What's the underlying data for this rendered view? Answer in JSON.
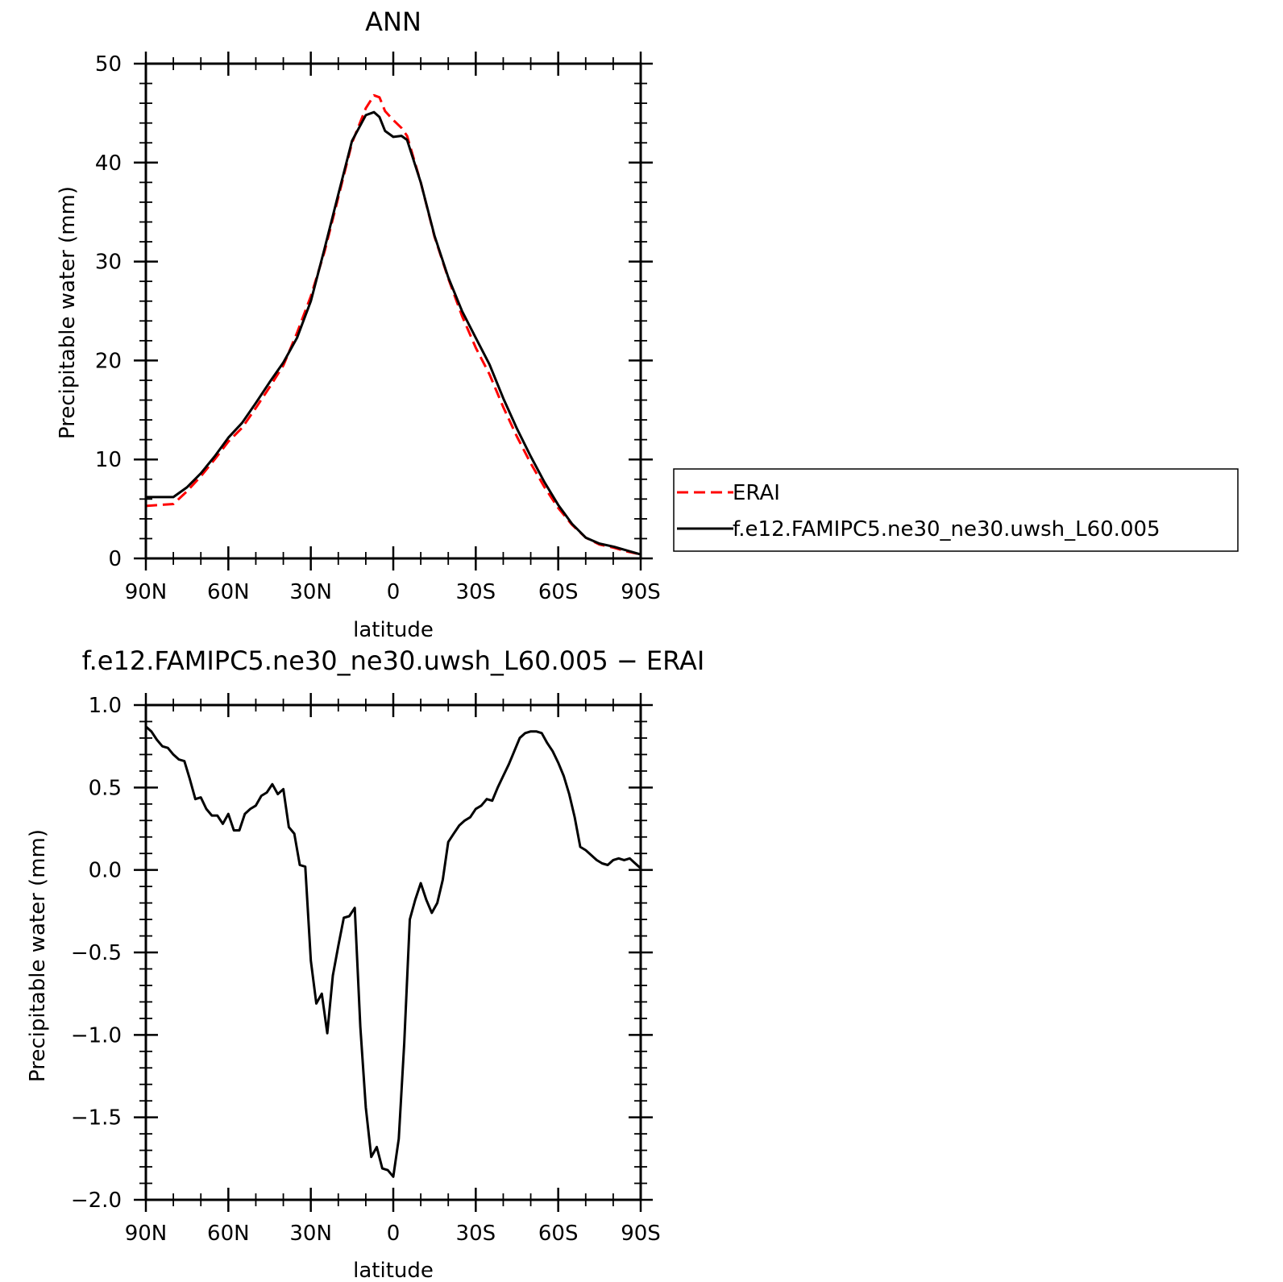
{
  "chart_data": [
    {
      "type": "line",
      "title": "ANN",
      "xlabel": "latitude",
      "ylabel": "Precipitable water (mm)",
      "ylim": [
        0,
        50
      ],
      "xlim": [
        90,
        -90
      ],
      "yticks": [
        0,
        10,
        20,
        30,
        40,
        50
      ],
      "ytick_labels": [
        "0",
        "10",
        "20",
        "30",
        "40",
        "50"
      ],
      "xticks": [
        90,
        60,
        30,
        0,
        -30,
        -60,
        -90
      ],
      "xtick_labels": [
        "90N",
        "60N",
        "30N",
        "0",
        "30S",
        "60S",
        "90S"
      ],
      "grid": false,
      "legend_position": "right",
      "x": [
        90,
        85,
        80,
        75,
        70,
        65,
        60,
        55,
        50,
        45,
        40,
        35,
        30,
        25,
        20,
        15,
        10,
        7,
        5,
        3,
        0,
        -3,
        -5,
        -10,
        -15,
        -20,
        -25,
        -30,
        -35,
        -40,
        -45,
        -50,
        -55,
        -60,
        -65,
        -70,
        -75,
        -80,
        -85,
        -90
      ],
      "series": [
        {
          "name": "ERAI",
          "color": "#ff0000",
          "dash": "dashed",
          "values": [
            5.3,
            5.4,
            5.5,
            6.8,
            8.3,
            10.0,
            11.8,
            13.2,
            15.2,
            17.3,
            19.5,
            22.8,
            26.5,
            31.0,
            36.5,
            42.0,
            45.5,
            46.8,
            46.6,
            45.2,
            44.3,
            43.5,
            42.7,
            38.0,
            32.5,
            28.3,
            24.5,
            21.3,
            18.6,
            15.3,
            12.3,
            9.6,
            7.2,
            5.1,
            3.4,
            2.1,
            1.4,
            1.1,
            0.7,
            0.4
          ]
        },
        {
          "name": "f.e12.FAMIPC5.ne30_ne30.uwsh_L60.005",
          "color": "#000000",
          "dash": "solid",
          "values": [
            6.2,
            6.2,
            6.2,
            7.2,
            8.6,
            10.3,
            12.2,
            13.7,
            15.7,
            17.8,
            19.8,
            22.3,
            26.0,
            31.3,
            36.8,
            42.2,
            44.8,
            45.1,
            44.6,
            43.2,
            42.6,
            42.7,
            42.3,
            38.0,
            32.6,
            28.4,
            25.0,
            22.3,
            19.6,
            16.2,
            13.1,
            10.3,
            7.7,
            5.4,
            3.5,
            2.1,
            1.5,
            1.2,
            0.8,
            0.4
          ]
        }
      ]
    },
    {
      "type": "line",
      "title": "f.e12.FAMIPC5.ne30_ne30.uwsh_L60.005 − ERAI",
      "xlabel": "latitude",
      "ylabel": "Precipitable water (mm)",
      "ylim": [
        -2.0,
        1.0
      ],
      "xlim": [
        90,
        -90
      ],
      "yticks": [
        -2.0,
        -1.5,
        -1.0,
        -0.5,
        0.0,
        0.5,
        1.0
      ],
      "ytick_labels": [
        "−2.0",
        "−1.5",
        "−1.0",
        "−0.5",
        "0.0",
        "0.5",
        "1.0"
      ],
      "xticks": [
        90,
        60,
        30,
        0,
        -30,
        -60,
        -90
      ],
      "xtick_labels": [
        "90N",
        "60N",
        "30N",
        "0",
        "30S",
        "60S",
        "90S"
      ],
      "grid": false,
      "x": [
        90,
        88,
        86,
        84,
        82,
        80,
        78,
        76,
        74,
        72,
        70,
        68,
        66,
        64,
        62,
        60,
        58,
        56,
        54,
        52,
        50,
        48,
        46,
        44,
        42,
        40,
        38,
        36,
        34,
        32,
        30,
        28,
        26,
        24,
        22,
        20,
        18,
        16,
        14,
        12,
        10,
        8,
        6,
        4,
        2,
        0,
        -2,
        -4,
        -6,
        -8,
        -10,
        -12,
        -14,
        -16,
        -18,
        -20,
        -22,
        -24,
        -26,
        -28,
        -30,
        -32,
        -34,
        -36,
        -38,
        -40,
        -42,
        -44,
        -46,
        -48,
        -50,
        -52,
        -54,
        -56,
        -58,
        -60,
        -62,
        -64,
        -66,
        -68,
        -70,
        -72,
        -74,
        -76,
        -78,
        -80,
        -82,
        -84,
        -86,
        -88,
        -90
      ],
      "series": [
        {
          "name": "",
          "color": "#000000",
          "dash": "solid",
          "values": [
            0.87,
            0.84,
            0.79,
            0.75,
            0.74,
            0.7,
            0.67,
            0.66,
            0.55,
            0.43,
            0.44,
            0.37,
            0.33,
            0.33,
            0.28,
            0.34,
            0.24,
            0.24,
            0.34,
            0.37,
            0.39,
            0.45,
            0.47,
            0.52,
            0.46,
            0.49,
            0.26,
            0.22,
            0.03,
            0.02,
            -0.55,
            -0.81,
            -0.75,
            -0.99,
            -0.64,
            -0.46,
            -0.29,
            -0.28,
            -0.23,
            -0.95,
            -1.44,
            -1.74,
            -1.68,
            -1.81,
            -1.82,
            -1.86,
            -1.63,
            -1.05,
            -0.3,
            -0.18,
            -0.08,
            -0.18,
            -0.26,
            -0.2,
            -0.06,
            0.17,
            0.22,
            0.27,
            0.3,
            0.32,
            0.37,
            0.39,
            0.43,
            0.42,
            0.5,
            0.57,
            0.64,
            0.72,
            0.8,
            0.83,
            0.84,
            0.84,
            0.83,
            0.77,
            0.72,
            0.65,
            0.57,
            0.46,
            0.32,
            0.14,
            0.12,
            0.09,
            0.06,
            0.04,
            0.03,
            0.06,
            0.07,
            0.06,
            0.07,
            0.04,
            0.01
          ]
        }
      ]
    }
  ]
}
